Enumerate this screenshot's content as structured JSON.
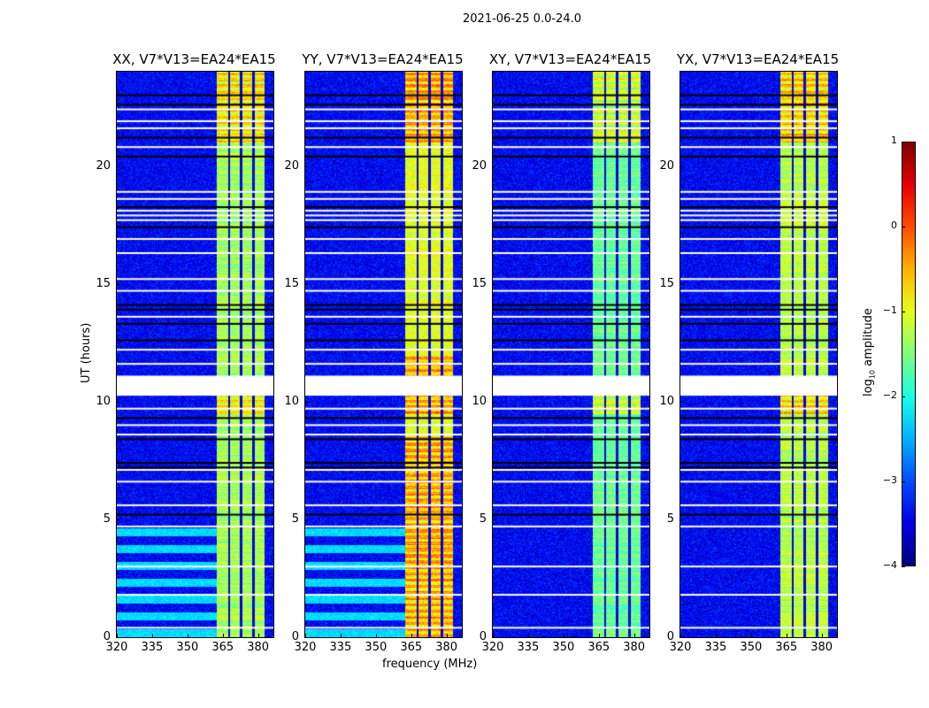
{
  "suptitle": "2021-06-25 0.0-24.0",
  "chart_data": {
    "type": "heatmap",
    "panels": [
      {
        "title": "XX, V7*V13=EA24*EA15",
        "low_freq_stripes": true,
        "band_level": -1.3
      },
      {
        "title": "YY, V7*V13=EA24*EA15",
        "low_freq_stripes": true,
        "band_level": -1.0
      },
      {
        "title": "XY, V7*V13=EA24*EA15",
        "low_freq_stripes": false,
        "band_level": -1.6
      },
      {
        "title": "YX, V7*V13=EA24*EA15",
        "low_freq_stripes": false,
        "band_level": -1.2
      }
    ],
    "xlabel": "frequency (MHz)",
    "ylabel": "UT (hours)",
    "xlim": [
      320,
      386.5
    ],
    "ylim": [
      0,
      24
    ],
    "xticks": [
      "320",
      "335",
      "350",
      "365",
      "380"
    ],
    "xtick_values": [
      320,
      335,
      350,
      365,
      380
    ],
    "yticks": [
      "0",
      "5",
      "10",
      "15",
      "20"
    ],
    "ytick_values": [
      0,
      5,
      10,
      15,
      20
    ],
    "background_level": -3.4,
    "strong_band_mhz": [
      362.3,
      382.5
    ],
    "band_gaps_mhz": [
      367.6,
      372.6,
      377.8
    ],
    "flagged_hours": [
      0.4,
      1.8,
      3.0,
      4.7,
      5.6,
      6.6,
      7.1,
      8.6,
      9.0,
      9.7,
      11.6,
      12.2,
      13.6,
      14.7,
      15.2,
      16.3,
      16.9,
      17.7,
      17.9,
      18.1,
      18.6,
      18.9,
      20.8,
      21.6,
      21.9,
      22.4
    ],
    "flagged_block_hours": [
      10.25,
      11.1
    ],
    "dark_rows_hours": [
      5.2,
      7.2,
      7.4,
      8.4,
      9.3,
      12.6,
      13.3,
      13.9,
      14.1,
      17.4,
      18.25,
      20.4,
      21.2,
      22.6,
      23.0
    ],
    "colorbar": {
      "label": "log",
      "label_sub": "10",
      "label_rest": " amplitude",
      "range": [
        -4,
        1
      ],
      "ticks": [
        "1",
        "0",
        "−1",
        "−2",
        "−3",
        "−4"
      ],
      "tick_values": [
        1,
        0,
        -1,
        -2,
        -3,
        -4
      ],
      "colormap": "jet"
    }
  }
}
